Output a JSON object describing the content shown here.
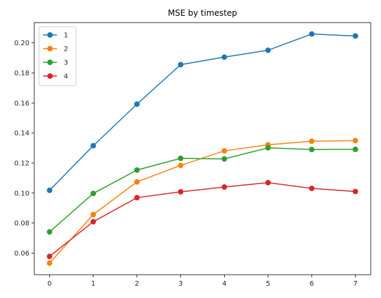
{
  "chart_data": {
    "type": "line",
    "title": "MSE by timestep",
    "xlabel": "",
    "ylabel": "",
    "x": [
      0,
      1,
      2,
      3,
      4,
      5,
      6,
      7
    ],
    "xlim": [
      -0.35,
      7.35
    ],
    "ylim": [
      0.0456,
      0.2135
    ],
    "xticks": [
      "0",
      "1",
      "2",
      "3",
      "4",
      "5",
      "6",
      "7"
    ],
    "yticks": [
      "0.06",
      "0.08",
      "0.10",
      "0.12",
      "0.14",
      "0.16",
      "0.18",
      "0.20"
    ],
    "grid": false,
    "legend_position": "top-left",
    "series": [
      {
        "name": "1",
        "color": "#1f77b4",
        "values": [
          0.1018,
          0.1315,
          0.1592,
          0.1855,
          0.1905,
          0.1951,
          0.2059,
          0.2046
        ]
      },
      {
        "name": "2",
        "color": "#ff7f0e",
        "values": [
          0.0533,
          0.0857,
          0.1074,
          0.1184,
          0.1281,
          0.1321,
          0.1345,
          0.1349
        ]
      },
      {
        "name": "3",
        "color": "#2ca02c",
        "values": [
          0.0741,
          0.0997,
          0.1153,
          0.1231,
          0.1227,
          0.1301,
          0.129,
          0.1291
        ]
      },
      {
        "name": "4",
        "color": "#d62728",
        "values": [
          0.0578,
          0.0809,
          0.0969,
          0.1008,
          0.104,
          0.1069,
          0.1031,
          0.101
        ]
      }
    ]
  }
}
